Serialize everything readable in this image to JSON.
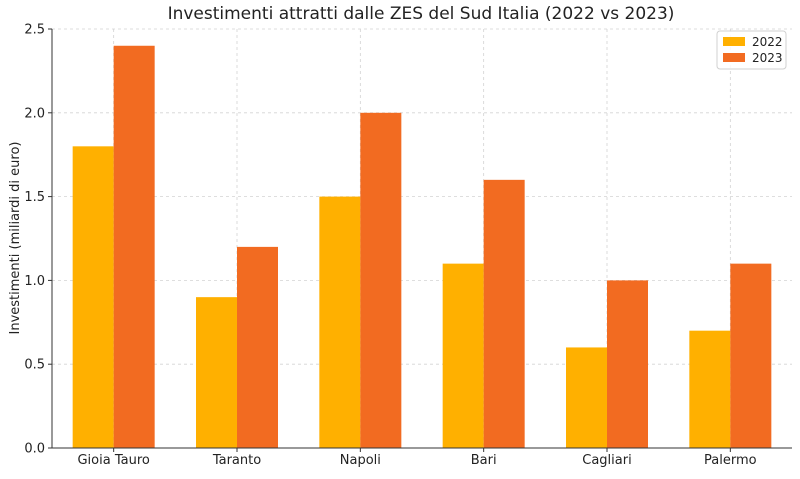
{
  "chart_data": {
    "type": "bar",
    "title": "Investimenti attratti dalle ZES del Sud Italia (2022 vs 2023)",
    "xlabel": "",
    "ylabel": "Investimenti (miliardi di euro)",
    "categories": [
      "Gioia Tauro",
      "Taranto",
      "Napoli",
      "Bari",
      "Cagliari",
      "Palermo"
    ],
    "series": [
      {
        "name": "2022",
        "color": "#FFB000",
        "values": [
          1.8,
          0.9,
          1.5,
          1.1,
          0.6,
          0.7
        ]
      },
      {
        "name": "2023",
        "color": "#F26B21",
        "values": [
          2.4,
          1.2,
          2.0,
          1.6,
          1.0,
          1.1
        ]
      }
    ],
    "ylim": [
      0,
      2.5
    ],
    "yticks": [
      "0.0",
      "0.5",
      "1.0",
      "1.5",
      "2.0",
      "2.5"
    ],
    "grid": true,
    "legend_position": "top-right"
  }
}
